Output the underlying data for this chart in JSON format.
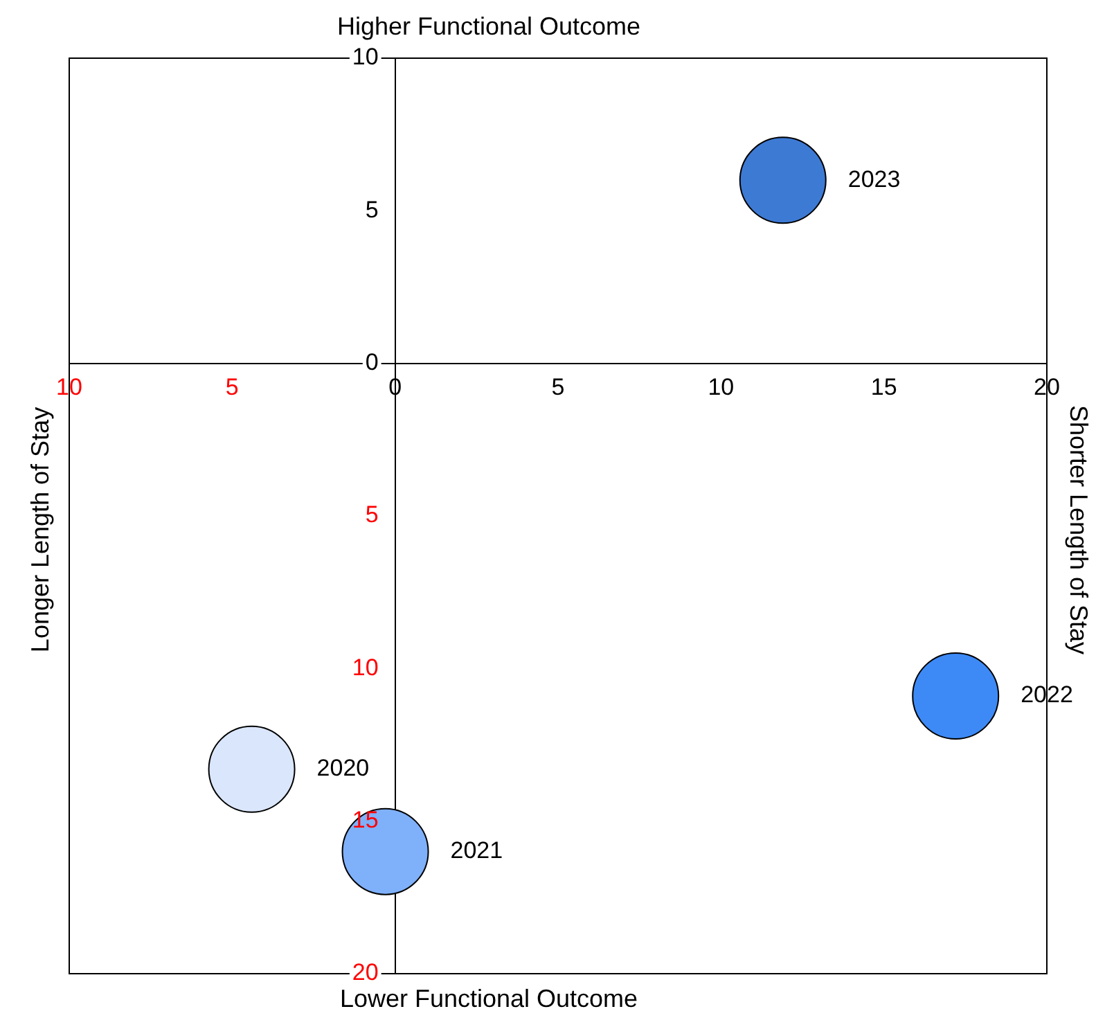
{
  "chart_data": {
    "type": "scatter",
    "xlabel": "Lower Functional Outcome",
    "x2label": "Higher Functional Outcome",
    "ylabel": "Longer Length of Stay",
    "y2label": "Shorter Length of Stay",
    "x": [
      -4.4,
      -0.3,
      17.2,
      11.9
    ],
    "values": [
      -13.3,
      -16.0,
      -10.9,
      6.0
    ],
    "colors": [
      "#dae6fb",
      "#7fb0fa",
      "#3d8af7",
      "#3d7ad4"
    ],
    "marker": "circle",
    "xlim": [
      -10,
      20
    ],
    "xticks": [
      {
        "value": -10,
        "label": "10"
      },
      {
        "value": -5,
        "label": "5"
      },
      0,
      5,
      10,
      15,
      20
    ],
    "ylim": [
      -20,
      10
    ],
    "yticks": [
      {
        "value": -20,
        "label": "20"
      },
      {
        "value": -15,
        "label": "15"
      },
      {
        "value": -10,
        "label": "10"
      },
      {
        "value": -5,
        "label": "5"
      },
      0,
      5,
      10
    ],
    "grid": false,
    "legend": false,
    "annotations": [
      {
        "text": "2020",
        "x": -4.4,
        "y": -13.3
      },
      {
        "text": "2021",
        "x": -0.3,
        "y": -16.0
      },
      {
        "text": "2022",
        "x": 17.2,
        "y": -10.9
      },
      {
        "text": "2023",
        "x": 11.9,
        "y": 6.0
      }
    ]
  }
}
